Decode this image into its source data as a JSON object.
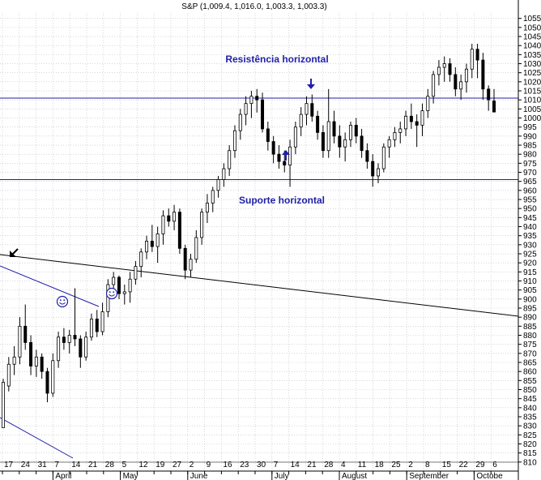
{
  "chart_data": {
    "type": "candlestick",
    "title": "S&P (1,009.4, 1,016.0, 1,003.3, 1,003.3)",
    "ylim": [
      805,
      1058
    ],
    "y_ticks": [
      810,
      815,
      820,
      825,
      830,
      835,
      840,
      845,
      850,
      855,
      860,
      865,
      870,
      875,
      880,
      885,
      890,
      895,
      900,
      905,
      910,
      915,
      920,
      925,
      930,
      935,
      940,
      945,
      950,
      955,
      960,
      965,
      970,
      975,
      980,
      985,
      990,
      995,
      1000,
      1005,
      1010,
      1015,
      1020,
      1025,
      1030,
      1035,
      1040,
      1045,
      1050,
      1055
    ],
    "x_ticks": [
      "17",
      "24",
      "31",
      "7",
      "14",
      "21",
      "28",
      "5",
      "12",
      "19",
      "27",
      "2",
      "9",
      "16",
      "23",
      "30",
      "7",
      "14",
      "21",
      "28",
      "4",
      "11",
      "18",
      "25",
      "2",
      "8",
      "15",
      "22",
      "29",
      "6"
    ],
    "months": [
      "April",
      "May",
      "June",
      "July",
      "August",
      "September",
      "Octobe"
    ],
    "grid": true,
    "annotations": {
      "resistance_label": "Resistência horizontal",
      "support_label": "Suporte horizontal",
      "resistance_level": 1011,
      "support_level": 966
    },
    "candles": [
      [
        829,
        856,
        829,
        854
      ],
      [
        852,
        868,
        849,
        864
      ],
      [
        864,
        874,
        858,
        868
      ],
      [
        868,
        890,
        864,
        885
      ],
      [
        885,
        897,
        872,
        876
      ],
      [
        876,
        880,
        858,
        863
      ],
      [
        863,
        872,
        857,
        868
      ],
      [
        868,
        870,
        856,
        860
      ],
      [
        860,
        862,
        843,
        848
      ],
      [
        848,
        870,
        846,
        866
      ],
      [
        866,
        882,
        862,
        879
      ],
      [
        879,
        884,
        872,
        876
      ],
      [
        876,
        883,
        870,
        880
      ],
      [
        880,
        906,
        874,
        878
      ],
      [
        878,
        880,
        862,
        868
      ],
      [
        868,
        882,
        866,
        879
      ],
      [
        879,
        892,
        877,
        889
      ],
      [
        889,
        894,
        879,
        882
      ],
      [
        882,
        898,
        880,
        893
      ],
      [
        893,
        911,
        890,
        908
      ],
      [
        908,
        915,
        900,
        912
      ],
      [
        912,
        913,
        900,
        903
      ],
      [
        903,
        908,
        897,
        904
      ],
      [
        904,
        915,
        898,
        911
      ],
      [
        911,
        921,
        908,
        918
      ],
      [
        918,
        928,
        912,
        926
      ],
      [
        926,
        935,
        922,
        932
      ],
      [
        932,
        941,
        926,
        929
      ],
      [
        929,
        940,
        920,
        936
      ],
      [
        936,
        949,
        930,
        946
      ],
      [
        946,
        950,
        940,
        943
      ],
      [
        943,
        952,
        938,
        948
      ],
      [
        948,
        950,
        925,
        928
      ],
      [
        928,
        930,
        911,
        916
      ],
      [
        916,
        925,
        912,
        922
      ],
      [
        922,
        938,
        920,
        934
      ],
      [
        934,
        950,
        930,
        948
      ],
      [
        948,
        958,
        942,
        953
      ],
      [
        953,
        962,
        948,
        960
      ],
      [
        960,
        968,
        956,
        966
      ],
      [
        966,
        975,
        962,
        972
      ],
      [
        972,
        985,
        968,
        982
      ],
      [
        982,
        996,
        978,
        993
      ],
      [
        993,
        1005,
        988,
        1002
      ],
      [
        1002,
        1012,
        996,
        1008
      ],
      [
        1008,
        1015,
        1000,
        1012
      ],
      [
        1012,
        1016,
        1003,
        1010
      ],
      [
        1010,
        1014,
        992,
        994
      ],
      [
        994,
        998,
        982,
        987
      ],
      [
        987,
        990,
        975,
        980
      ],
      [
        980,
        985,
        972,
        976
      ],
      [
        976,
        982,
        970,
        974
      ],
      [
        974,
        988,
        962,
        984
      ],
      [
        984,
        998,
        980,
        995
      ],
      [
        995,
        1006,
        990,
        1002
      ],
      [
        1002,
        1012,
        996,
        1008
      ],
      [
        1008,
        1013,
        998,
        1001
      ],
      [
        1001,
        1004,
        988,
        992
      ],
      [
        992,
        996,
        978,
        982
      ],
      [
        982,
        1016,
        978,
        998
      ],
      [
        998,
        1004,
        986,
        990
      ],
      [
        990,
        996,
        978,
        984
      ],
      [
        984,
        992,
        976,
        988
      ],
      [
        988,
        998,
        984,
        996
      ],
      [
        996,
        1000,
        986,
        990
      ],
      [
        990,
        994,
        978,
        982
      ],
      [
        982,
        986,
        972,
        976
      ],
      [
        976,
        980,
        962,
        968
      ],
      [
        968,
        975,
        964,
        972
      ],
      [
        972,
        986,
        970,
        984
      ],
      [
        984,
        990,
        978,
        988
      ],
      [
        988,
        995,
        984,
        992
      ],
      [
        992,
        998,
        986,
        994
      ],
      [
        994,
        1004,
        990,
        1001
      ],
      [
        1001,
        1008,
        994,
        998
      ],
      [
        998,
        1002,
        984,
        996
      ],
      [
        996,
        1008,
        990,
        1004
      ],
      [
        1004,
        1016,
        1000,
        1012
      ],
      [
        1012,
        1026,
        1008,
        1024
      ],
      [
        1024,
        1032,
        1018,
        1028
      ],
      [
        1028,
        1034,
        1020,
        1030
      ],
      [
        1030,
        1033,
        1020,
        1024
      ],
      [
        1024,
        1028,
        1012,
        1016
      ],
      [
        1016,
        1024,
        1010,
        1020
      ],
      [
        1020,
        1030,
        1014,
        1027
      ],
      [
        1027,
        1041,
        1022,
        1038
      ],
      [
        1038,
        1041,
        1022,
        1032
      ],
      [
        1032,
        1036,
        1010,
        1016
      ],
      [
        1016,
        1018,
        1004,
        1010
      ],
      [
        1009.4,
        1016,
        1003.3,
        1003.3
      ]
    ]
  }
}
